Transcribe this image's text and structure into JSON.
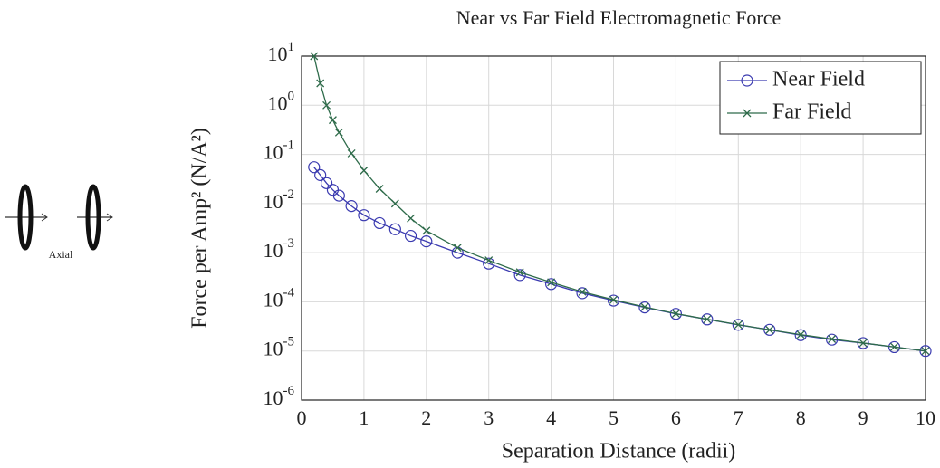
{
  "chart_data": {
    "type": "line",
    "title": "Near vs Far Field Electromagnetic Force",
    "x_label": "Separation Distance (radii)",
    "y_label": "Force per Amp² (N/A²)",
    "annotation": "Axial",
    "log_y": true,
    "grid": true,
    "legend": "top-right",
    "x": [
      0.2,
      0.3,
      0.4,
      0.5,
      0.6,
      0.8,
      1,
      1.25,
      1.5,
      1.75,
      2,
      2.5,
      3,
      3.5,
      4,
      4.5,
      5,
      5.5,
      6,
      6.5,
      7,
      7.5,
      8,
      8.5,
      9,
      9.5,
      10
    ],
    "series": [
      {
        "name": "Near Field",
        "color": "#3a3ab0",
        "marker": "circle",
        "values": [
          0.055,
          0.038,
          0.026,
          0.019,
          0.0145,
          0.0089,
          0.0058,
          0.004,
          0.003,
          0.0022,
          0.0017,
          0.001,
          0.0006,
          0.00035,
          0.00023,
          0.00015,
          0.000106,
          7.7e-05,
          5.7e-05,
          4.4e-05,
          3.4e-05,
          2.7e-05,
          2.1e-05,
          1.7e-05,
          1.45e-05,
          1.2e-05,
          1e-05
        ]
      },
      {
        "name": "Far Field",
        "color": "#2e6b4a",
        "marker": "cross",
        "values": [
          10,
          2.8,
          1.0,
          0.5,
          0.28,
          0.105,
          0.047,
          0.02,
          0.01,
          0.005,
          0.0028,
          0.00126,
          0.0007,
          0.0004,
          0.00025,
          0.00016,
          0.00011,
          7.85e-05,
          5.75e-05,
          4.42e-05,
          3.43e-05,
          2.69e-05,
          2.15e-05,
          1.75e-05,
          1.45e-05,
          1.21e-05,
          1e-05
        ]
      }
    ],
    "xlim": [
      0,
      10
    ],
    "xticks": [
      0,
      1,
      2,
      3,
      4,
      5,
      6,
      7,
      8,
      9,
      10
    ],
    "ylim": [
      1e-06,
      10
    ],
    "yticks": [
      {
        "value": 1e-06,
        "label": "10^-6"
      },
      {
        "value": 1e-05,
        "label": "10^-5"
      },
      {
        "value": 0.0001,
        "label": "10^-4"
      },
      {
        "value": 0.001,
        "label": "10^-3"
      },
      {
        "value": 0.01,
        "label": "10^-2"
      },
      {
        "value": 0.1,
        "label": "10^-1"
      },
      {
        "value": 1,
        "label": "10^0"
      },
      {
        "value": 10,
        "label": "10^1"
      }
    ]
  }
}
